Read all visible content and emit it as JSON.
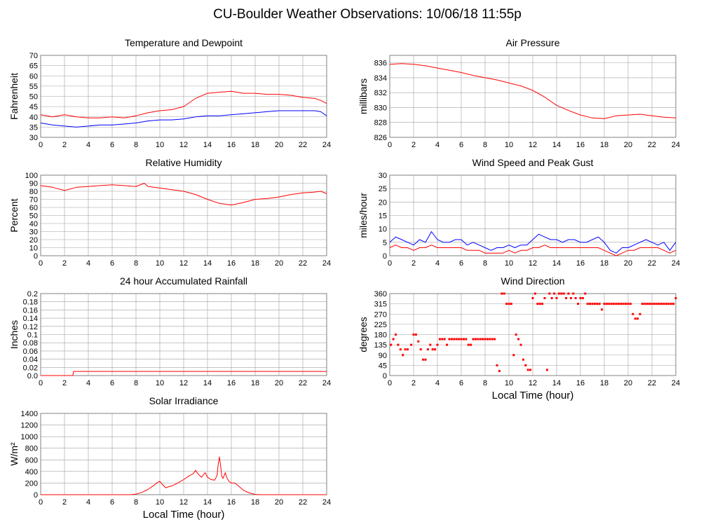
{
  "page": {
    "title": "CU-Boulder Weather Observations: 10/06/18 11:55p",
    "xlabel": "Local Time (hour)"
  },
  "colors": {
    "primary": "#ff0000",
    "secondary": "#0000ff",
    "grid": "#a0a0a0",
    "frame": "#808080"
  },
  "chart_data": [
    {
      "id": "temp",
      "type": "line",
      "title": "Temperature and Dewpoint",
      "ylabel": "Fahrenheit",
      "xlim": [
        0,
        24
      ],
      "ylim": [
        30,
        70
      ],
      "xticks": [
        0,
        2,
        4,
        6,
        8,
        10,
        12,
        14,
        16,
        18,
        20,
        22,
        24
      ],
      "yticks": [
        30,
        35,
        40,
        45,
        50,
        55,
        60,
        65,
        70
      ],
      "show_xlabel": false,
      "series": [
        {
          "color": "#ff0000",
          "x": [
            0,
            1,
            2,
            3,
            4,
            5,
            6,
            7,
            8,
            9,
            10,
            11,
            12,
            13,
            14,
            15,
            16,
            17,
            18,
            19,
            20,
            21,
            22,
            23,
            23.5,
            24
          ],
          "y": [
            41,
            40,
            41,
            40,
            39.5,
            39.5,
            40,
            39.5,
            40.5,
            42,
            43,
            43.5,
            45,
            49,
            51.5,
            52,
            52.5,
            51.5,
            51.5,
            51,
            51,
            50.5,
            49.5,
            49,
            48,
            46.5
          ]
        },
        {
          "color": "#0000ff",
          "x": [
            0,
            1,
            2,
            3,
            4,
            5,
            6,
            7,
            8,
            9,
            10,
            11,
            12,
            13,
            14,
            15,
            16,
            17,
            18,
            19,
            20,
            21,
            22,
            23,
            23.5,
            24
          ],
          "y": [
            37,
            36,
            35.5,
            35,
            35.5,
            36,
            36,
            36.5,
            37,
            38,
            38.5,
            38.5,
            39,
            40,
            40.5,
            40.5,
            41,
            41.5,
            42,
            42.5,
            43,
            43,
            43,
            43,
            42.5,
            40.5
          ]
        }
      ]
    },
    {
      "id": "pressure",
      "type": "line",
      "title": "Air Pressure",
      "ylabel": "millibars",
      "xlim": [
        0,
        24
      ],
      "ylim": [
        826,
        837
      ],
      "xticks": [
        0,
        2,
        4,
        6,
        8,
        10,
        12,
        14,
        16,
        18,
        20,
        22,
        24
      ],
      "yticks": [
        826,
        828,
        830,
        832,
        834,
        836
      ],
      "show_xlabel": false,
      "series": [
        {
          "color": "#ff0000",
          "x": [
            0,
            1,
            2,
            3,
            4,
            5,
            6,
            7,
            8,
            9,
            10,
            11,
            12,
            13,
            14,
            15,
            16,
            17,
            18,
            19,
            20,
            21,
            22,
            23,
            24
          ],
          "y": [
            835.8,
            835.9,
            835.8,
            835.6,
            835.3,
            835,
            834.7,
            834.3,
            834,
            833.7,
            833.3,
            832.9,
            832.3,
            831.4,
            830.3,
            829.6,
            829,
            828.6,
            828.5,
            828.9,
            829,
            829.1,
            828.9,
            828.7,
            828.6
          ]
        }
      ]
    },
    {
      "id": "humidity",
      "type": "line",
      "title": "Relative Humidity",
      "ylabel": "Percent",
      "xlim": [
        0,
        24
      ],
      "ylim": [
        0,
        100
      ],
      "xticks": [
        0,
        2,
        4,
        6,
        8,
        10,
        12,
        14,
        16,
        18,
        20,
        22,
        24
      ],
      "yticks": [
        0,
        10,
        20,
        30,
        40,
        50,
        60,
        70,
        80,
        90,
        100
      ],
      "show_xlabel": false,
      "series": [
        {
          "color": "#ff0000",
          "x": [
            0,
            1,
            2,
            3,
            4,
            5,
            6,
            7,
            8,
            8.7,
            9,
            10,
            11,
            12,
            13,
            14,
            15,
            16,
            17,
            18,
            19,
            20,
            21,
            22,
            23,
            23.5,
            24
          ],
          "y": [
            87,
            85,
            81,
            85,
            86,
            87,
            88,
            87,
            86,
            90,
            86,
            84,
            82,
            80,
            76,
            70,
            65,
            63,
            66,
            70,
            71,
            73,
            76,
            78,
            79,
            80,
            77
          ]
        }
      ]
    },
    {
      "id": "wind",
      "type": "line",
      "title": "Wind Speed and Peak Gust",
      "ylabel": "miles/hour",
      "xlim": [
        0,
        24
      ],
      "ylim": [
        0,
        30
      ],
      "xticks": [
        0,
        2,
        4,
        6,
        8,
        10,
        12,
        14,
        16,
        18,
        20,
        22,
        24
      ],
      "yticks": [
        0,
        5,
        10,
        15,
        20,
        25,
        30
      ],
      "show_xlabel": false,
      "series": [
        {
          "color": "#0000ff",
          "x": [
            0,
            0.5,
            1,
            1.5,
            2,
            2.5,
            3,
            3.5,
            4,
            4.5,
            5,
            5.5,
            6,
            6.5,
            7,
            7.5,
            8,
            8.5,
            9,
            9.5,
            10,
            10.5,
            11,
            11.5,
            12,
            12.5,
            13,
            13.5,
            14,
            14.5,
            15,
            15.5,
            16,
            16.5,
            17,
            17.5,
            18,
            18.5,
            19,
            19.5,
            20,
            20.5,
            21,
            21.5,
            22,
            22.5,
            23,
            23.5,
            24
          ],
          "y": [
            5,
            7,
            6,
            5,
            4,
            6,
            5,
            9,
            6,
            5,
            5,
            6,
            6,
            4,
            5,
            4,
            3,
            2,
            3,
            3,
            4,
            3,
            4,
            4,
            6,
            8,
            7,
            6,
            6,
            5,
            6,
            6,
            5,
            5,
            6,
            7,
            5,
            2,
            1,
            3,
            3,
            4,
            5,
            6,
            5,
            4,
            5,
            2,
            5
          ]
        },
        {
          "color": "#ff0000",
          "x": [
            0,
            0.5,
            1,
            1.5,
            2,
            2.5,
            3,
            3.5,
            4,
            4.5,
            5,
            5.5,
            6,
            6.5,
            7,
            7.5,
            8,
            8.5,
            9,
            9.5,
            10,
            10.5,
            11,
            11.5,
            12,
            12.5,
            13,
            13.5,
            14,
            14.5,
            15,
            15.5,
            16,
            16.5,
            17,
            17.5,
            18,
            18.5,
            19,
            19.5,
            20,
            20.5,
            21,
            21.5,
            22,
            22.5,
            23,
            23.5,
            24
          ],
          "y": [
            3,
            4,
            3,
            3,
            2,
            3,
            3,
            4,
            3,
            3,
            3,
            3,
            3,
            2,
            2,
            2,
            1,
            1,
            1,
            1,
            2,
            1,
            2,
            2,
            3,
            3,
            4,
            3,
            3,
            3,
            3,
            3,
            3,
            3,
            3,
            3,
            2,
            1,
            0,
            1,
            2,
            2,
            3,
            3,
            3,
            3,
            2,
            1,
            2
          ]
        }
      ]
    },
    {
      "id": "rain",
      "type": "line",
      "title": "24 hour Accumulated Rainfall",
      "ylabel": "Inches",
      "xlim": [
        0,
        24
      ],
      "ylim": [
        0,
        0.2
      ],
      "xticks": [
        0,
        2,
        4,
        6,
        8,
        10,
        12,
        14,
        16,
        18,
        20,
        22,
        24
      ],
      "yticks": [
        0,
        0.02,
        0.04,
        0.06,
        0.08,
        0.1,
        0.12,
        0.14,
        0.16,
        0.18,
        0.2
      ],
      "ytick_labels": [
        "0.0",
        "0.02",
        "0.04",
        "0.06",
        "0.08",
        "0.1",
        "0.12",
        "0.14",
        "0.16",
        "0.18",
        "0.2"
      ],
      "show_xlabel": false,
      "series": [
        {
          "color": "#ff0000",
          "x": [
            0,
            2.7,
            2.75,
            24
          ],
          "y": [
            0,
            0,
            0.01,
            0.01
          ]
        }
      ]
    },
    {
      "id": "direction",
      "type": "scatter",
      "title": "Wind Direction",
      "ylabel": "degrees",
      "xlim": [
        0,
        24
      ],
      "ylim": [
        0,
        360
      ],
      "xticks": [
        0,
        2,
        4,
        6,
        8,
        10,
        12,
        14,
        16,
        18,
        20,
        22,
        24
      ],
      "yticks": [
        0,
        45,
        90,
        135,
        180,
        225,
        270,
        315,
        360
      ],
      "show_xlabel": true,
      "series": [
        {
          "color": "#ff0000",
          "x": [
            0.1,
            0.3,
            0.5,
            0.7,
            0.9,
            1.1,
            1.3,
            1.5,
            1.8,
            2.0,
            2.2,
            2.4,
            2.6,
            2.8,
            3.0,
            3.2,
            3.4,
            3.6,
            3.8,
            4.0,
            4.2,
            4.4,
            4.6,
            4.8,
            5.0,
            5.2,
            5.4,
            5.6,
            5.8,
            6.0,
            6.2,
            6.4,
            6.6,
            6.8,
            7.0,
            7.2,
            7.4,
            7.6,
            7.8,
            8.0,
            8.2,
            8.4,
            8.6,
            8.8,
            9.0,
            9.2,
            9.4,
            9.6,
            9.8,
            10.0,
            10.2,
            10.4,
            10.6,
            10.8,
            11.0,
            11.2,
            11.4,
            11.6,
            11.8,
            12.0,
            12.2,
            12.4,
            12.6,
            12.8,
            13.0,
            13.2,
            13.4,
            13.6,
            13.8,
            14.0,
            14.2,
            14.4,
            14.6,
            14.8,
            15.0,
            15.2,
            15.4,
            15.6,
            15.8,
            16.0,
            16.2,
            16.4,
            16.6,
            16.8,
            17.0,
            17.2,
            17.4,
            17.6,
            17.8,
            18.0,
            18.2,
            18.4,
            18.6,
            18.8,
            19.0,
            19.2,
            19.4,
            19.6,
            19.8,
            20.0,
            20.2,
            20.4,
            20.6,
            20.8,
            21.0,
            21.2,
            21.4,
            21.6,
            21.8,
            22.0,
            22.2,
            22.4,
            22.6,
            22.8,
            23.0,
            23.2,
            23.4,
            23.6,
            23.8,
            24.0
          ],
          "y": [
            135,
            160,
            180,
            135,
            115,
            90,
            115,
            115,
            135,
            180,
            180,
            150,
            115,
            70,
            70,
            115,
            135,
            115,
            115,
            135,
            160,
            160,
            160,
            135,
            160,
            160,
            160,
            160,
            160,
            160,
            160,
            160,
            135,
            135,
            160,
            160,
            160,
            160,
            160,
            160,
            160,
            160,
            160,
            160,
            45,
            20,
            360,
            360,
            315,
            315,
            315,
            90,
            180,
            160,
            135,
            70,
            45,
            25,
            25,
            340,
            360,
            315,
            315,
            315,
            340,
            25,
            360,
            340,
            360,
            340,
            360,
            360,
            360,
            340,
            360,
            340,
            360,
            340,
            315,
            340,
            340,
            360,
            315,
            315,
            315,
            315,
            315,
            315,
            290,
            315,
            315,
            315,
            315,
            315,
            315,
            315,
            315,
            315,
            315,
            315,
            315,
            270,
            250,
            250,
            270,
            315,
            315,
            315,
            315,
            315,
            315,
            315,
            315,
            315,
            315,
            315,
            315,
            315,
            315,
            340
          ]
        }
      ]
    },
    {
      "id": "solar",
      "type": "line",
      "title": "Solar Irradiance",
      "ylabel": "W/m²",
      "xlim": [
        0,
        24
      ],
      "ylim": [
        0,
        1400
      ],
      "xticks": [
        0,
        2,
        4,
        6,
        8,
        10,
        12,
        14,
        16,
        18,
        20,
        22,
        24
      ],
      "yticks": [
        0,
        200,
        400,
        600,
        800,
        1000,
        1200,
        1400
      ],
      "show_xlabel": true,
      "series": [
        {
          "color": "#ff0000",
          "x": [
            0,
            7.5,
            8,
            8.5,
            9,
            9.5,
            9.8,
            10,
            10.2,
            10.5,
            10.8,
            11,
            11.5,
            12,
            12.5,
            12.8,
            13,
            13.2,
            13.5,
            13.8,
            14,
            14.3,
            14.6,
            14.8,
            14.9,
            15,
            15.1,
            15.2,
            15.3,
            15.5,
            15.6,
            15.8,
            16,
            16.3,
            16.6,
            17,
            17.5,
            18,
            18.5,
            24
          ],
          "y": [
            0,
            0,
            10,
            40,
            90,
            160,
            210,
            230,
            180,
            120,
            140,
            150,
            200,
            260,
            330,
            360,
            420,
            360,
            300,
            380,
            300,
            260,
            250,
            330,
            520,
            650,
            500,
            320,
            280,
            380,
            300,
            230,
            200,
            200,
            150,
            80,
            30,
            5,
            0,
            0
          ]
        }
      ]
    }
  ]
}
